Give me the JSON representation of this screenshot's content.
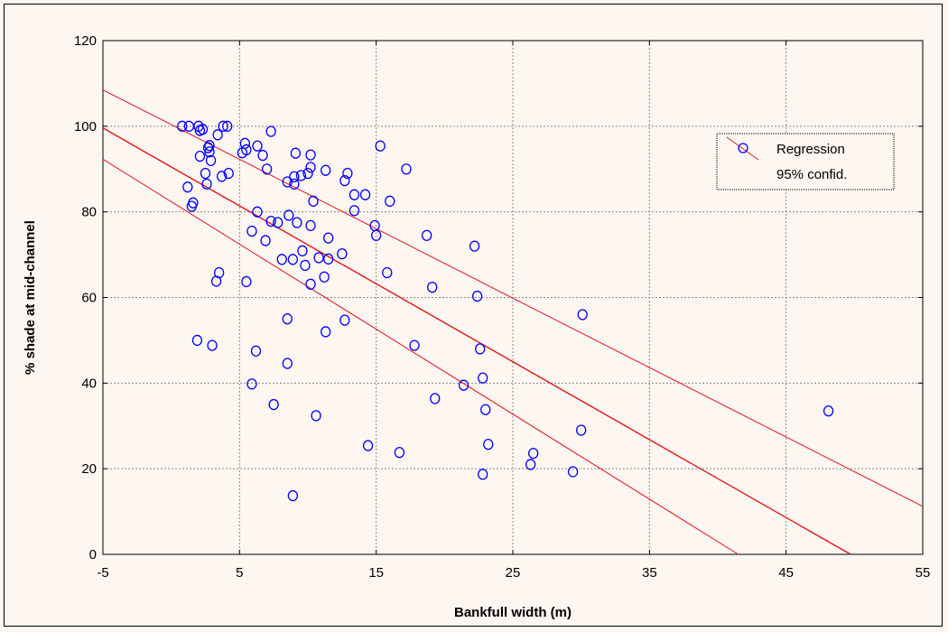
{
  "chart_data": {
    "type": "scatter",
    "xlabel": "Bankfull width (m)",
    "ylabel": "% shade at mid-channel",
    "xlim": [
      -5,
      55
    ],
    "ylim": [
      0,
      120
    ],
    "x_ticks": [
      -5,
      5,
      15,
      25,
      35,
      45,
      55
    ],
    "y_ticks": [
      0,
      20,
      40,
      60,
      80,
      100,
      120
    ],
    "grid": true,
    "legend_placement": "top-right",
    "legend": [
      "Regression",
      "95% confid."
    ],
    "regression": {
      "intercept": 90.5,
      "slope": -1.82
    },
    "confidence_band": {
      "lower": [
        [
          -5,
          92.3
        ],
        [
          41.5,
          0
        ]
      ],
      "upper": [
        [
          -5,
          108.5
        ],
        [
          55,
          11.2
        ]
      ]
    },
    "colors": {
      "points": "#0000ff",
      "lines": "#e0141c",
      "background": "#fdf6f1"
    },
    "points": [
      [
        0.8,
        100
      ],
      [
        1.3,
        100
      ],
      [
        2.0,
        100
      ],
      [
        2.3,
        99.3
      ],
      [
        2.1,
        99
      ],
      [
        3.8,
        100
      ],
      [
        4.1,
        100
      ],
      [
        3.4,
        98
      ],
      [
        7.3,
        98.8
      ],
      [
        2.7,
        95
      ],
      [
        2.8,
        95.5
      ],
      [
        2.8,
        94
      ],
      [
        5.4,
        96
      ],
      [
        5.5,
        94.5
      ],
      [
        6.3,
        95.4
      ],
      [
        2.9,
        92
      ],
      [
        6.7,
        93.2
      ],
      [
        9.1,
        93.7
      ],
      [
        10.2,
        93.3
      ],
      [
        15.3,
        95.4
      ],
      [
        2.6,
        86.5
      ],
      [
        4.2,
        89
      ],
      [
        3.7,
        88.3
      ],
      [
        2.5,
        89
      ],
      [
        5.2,
        93.8
      ],
      [
        7.0,
        90
      ],
      [
        10.0,
        89
      ],
      [
        10.2,
        90.4
      ],
      [
        11.3,
        89.7
      ],
      [
        9.0,
        88.2
      ],
      [
        9.5,
        88.5
      ],
      [
        8.5,
        87
      ],
      [
        9.0,
        86.5
      ],
      [
        12.9,
        89
      ],
      [
        12.7,
        87.3
      ],
      [
        13.4,
        84
      ],
      [
        14.2,
        84
      ],
      [
        1.2,
        85.8
      ],
      [
        10.4,
        82.5
      ],
      [
        16.0,
        82.5
      ],
      [
        17.2,
        90
      ],
      [
        2.1,
        93
      ],
      [
        1.5,
        81.3
      ],
      [
        1.6,
        82.1
      ],
      [
        6.3,
        80
      ],
      [
        7.3,
        77.8
      ],
      [
        7.8,
        77.5
      ],
      [
        8.6,
        79.2
      ],
      [
        9.2,
        77.5
      ],
      [
        10.2,
        76.8
      ],
      [
        13.4,
        80.3
      ],
      [
        14.9,
        76.8
      ],
      [
        15.0,
        74.5
      ],
      [
        18.7,
        74.5
      ],
      [
        22.2,
        72
      ],
      [
        5.9,
        75.5
      ],
      [
        6.9,
        73.3
      ],
      [
        9.6,
        70.9
      ],
      [
        11.5,
        73.9
      ],
      [
        8.1,
        68.9
      ],
      [
        8.9,
        68.9
      ],
      [
        9.8,
        67.5
      ],
      [
        10.8,
        69.3
      ],
      [
        11.5,
        69
      ],
      [
        12.5,
        70.2
      ],
      [
        3.5,
        65.8
      ],
      [
        3.3,
        63.8
      ],
      [
        5.5,
        63.7
      ],
      [
        10.2,
        63.1
      ],
      [
        11.2,
        64.8
      ],
      [
        15.8,
        65.8
      ],
      [
        19.1,
        62.4
      ],
      [
        22.4,
        60.3
      ],
      [
        30.1,
        56
      ],
      [
        8.5,
        55
      ],
      [
        12.7,
        54.7
      ],
      [
        11.3,
        52
      ],
      [
        1.9,
        50
      ],
      [
        3.0,
        48.8
      ],
      [
        6.2,
        47.5
      ],
      [
        17.8,
        48.8
      ],
      [
        22.6,
        48
      ],
      [
        8.5,
        44.6
      ],
      [
        5.9,
        39.8
      ],
      [
        19.3,
        36.4
      ],
      [
        21.4,
        39.5
      ],
      [
        22.8,
        41.2
      ],
      [
        7.5,
        35
      ],
      [
        10.6,
        32.4
      ],
      [
        23.0,
        33.8
      ],
      [
        48.1,
        33.5
      ],
      [
        30.0,
        29
      ],
      [
        14.4,
        25.4
      ],
      [
        16.7,
        23.8
      ],
      [
        23.2,
        25.7
      ],
      [
        26.5,
        23.6
      ],
      [
        26.3,
        21
      ],
      [
        22.8,
        18.7
      ],
      [
        29.4,
        19.3
      ],
      [
        8.9,
        13.7
      ]
    ]
  }
}
